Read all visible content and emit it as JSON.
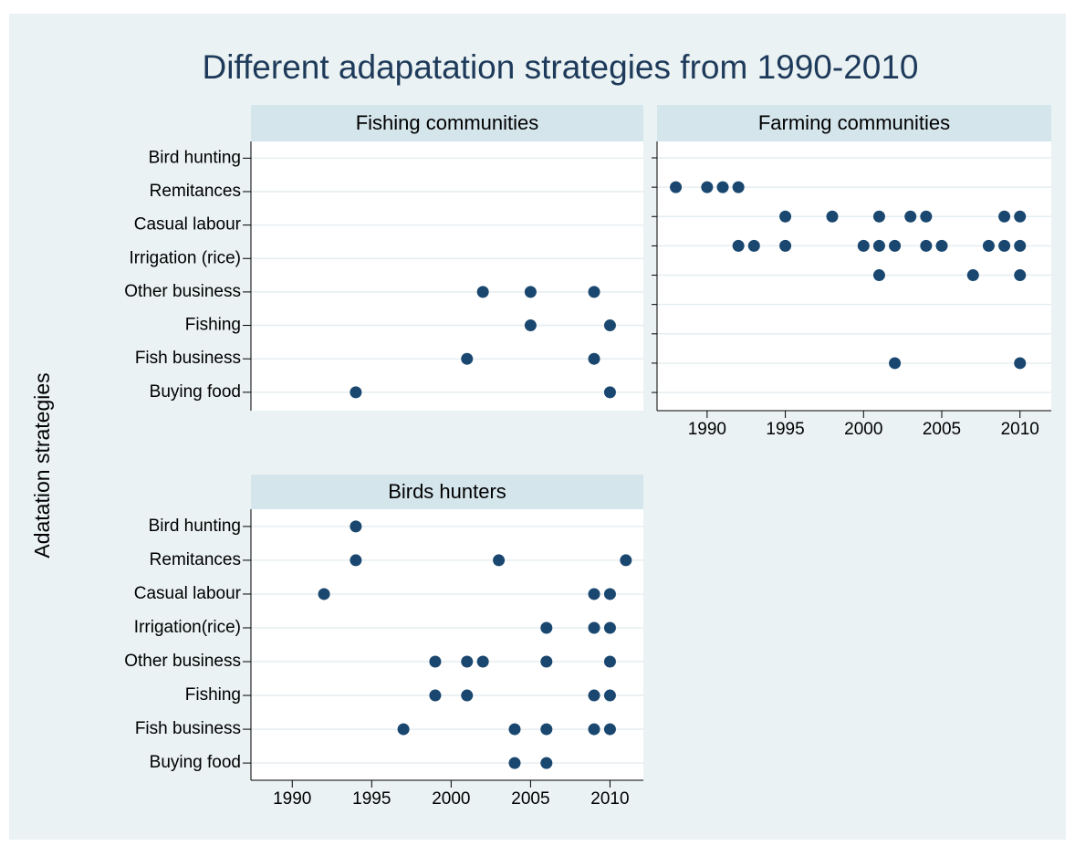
{
  "title": "Different adapatation strategies from 1990-2010",
  "ylabel": "Adatation strategies",
  "chart_data": [
    {
      "type": "scatter",
      "title": "Fishing communities",
      "color": "#1a476f",
      "y_categories": [
        "Buying food",
        "Fish business",
        "Fishing",
        "Other business",
        "Irrigation (rice)",
        "Casual labour",
        "Remitances",
        "Bird hunting"
      ],
      "x": [
        2002,
        2005,
        2009,
        2005,
        2010,
        2001,
        2009,
        1994,
        2010
      ],
      "y": [
        "Other business",
        "Other business",
        "Other business",
        "Fishing",
        "Fishing",
        "Fish business",
        "Fish business",
        "Buying food",
        "Buying food"
      ],
      "xlim": [
        1987.4,
        2012.1
      ],
      "ylim": [
        0.45,
        8.5
      ],
      "xticks": [
        1990,
        1995,
        2000,
        2005,
        2010
      ],
      "xtick_labels": false,
      "grid": true
    },
    {
      "type": "scatter",
      "title": "Farming communities",
      "color": "#1a476f",
      "x": [
        1988,
        1990,
        1991,
        1992,
        1995,
        1998,
        2001,
        2003,
        2004,
        2009,
        2010,
        1992,
        1993,
        1995,
        2000,
        2001,
        2002,
        2004,
        2005,
        2008,
        2009,
        2010,
        2001,
        2007,
        2010,
        2002,
        2010
      ],
      "y": [
        8,
        8,
        8,
        8,
        7,
        7,
        7,
        7,
        7,
        7,
        7,
        6,
        6,
        6,
        6,
        6,
        6,
        6,
        6,
        6,
        6,
        6,
        5,
        5,
        5,
        2,
        2
      ],
      "xlim": [
        1986.8,
        2012.0
      ],
      "ylim": [
        0.38,
        9.56
      ],
      "xticks": [
        1990,
        1995,
        2000,
        2005,
        2010
      ],
      "yticks": [
        1,
        2,
        3,
        4,
        5,
        6,
        7,
        8,
        9
      ],
      "xtick_labels": true,
      "grid": true
    },
    {
      "type": "scatter",
      "title": "Birds  hunters",
      "color": "#1a476f",
      "y_categories": [
        "Buying food",
        "Fish business",
        "Fishing",
        "Other business",
        "Irrigation(rice)",
        "Casual labour",
        "Remitances",
        "Bird hunting"
      ],
      "x": [
        1994,
        1994,
        2003,
        2011,
        1992,
        2009,
        2010,
        2006,
        2009,
        2010,
        1999,
        2001,
        2002,
        2006,
        2010,
        1999,
        2001,
        2009,
        2010,
        1997,
        2004,
        2006,
        2009,
        2010,
        2004,
        2006
      ],
      "y": [
        "Bird hunting",
        "Remitances",
        "Remitances",
        "Remitances",
        "Casual labour",
        "Casual labour",
        "Casual labour",
        "Irrigation(rice)",
        "Irrigation(rice)",
        "Irrigation(rice)",
        "Other business",
        "Other business",
        "Other business",
        "Other business",
        "Other business",
        "Fishing",
        "Fishing",
        "Fishing",
        "Fishing",
        "Fish business",
        "Fish business",
        "Fish business",
        "Fish business",
        "Fish business",
        "Buying food",
        "Buying food"
      ],
      "xlim": [
        1987.4,
        2012.1
      ],
      "ylim": [
        0.49,
        8.51
      ],
      "xticks": [
        1990,
        1995,
        2000,
        2005,
        2010
      ],
      "xtick_labels": true,
      "grid": true
    }
  ]
}
